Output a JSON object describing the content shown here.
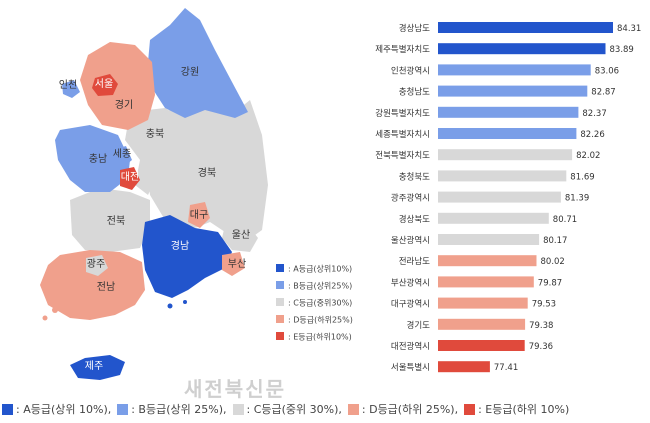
{
  "colors": {
    "A": "#2255cc",
    "B": "#7a9ee8",
    "C": "#d8d8d8",
    "D": "#f0a08c",
    "E": "#e04a3c"
  },
  "map_labels": [
    {
      "name": "인천",
      "grade": "B"
    },
    {
      "name": "서울",
      "grade": "E"
    },
    {
      "name": "경기",
      "grade": "D"
    },
    {
      "name": "강원",
      "grade": "B"
    },
    {
      "name": "충북",
      "grade": "C"
    },
    {
      "name": "충남",
      "grade": "B"
    },
    {
      "name": "세종",
      "grade": "B"
    },
    {
      "name": "대전",
      "grade": "E"
    },
    {
      "name": "경북",
      "grade": "C"
    },
    {
      "name": "대구",
      "grade": "D"
    },
    {
      "name": "전북",
      "grade": "C"
    },
    {
      "name": "경남",
      "grade": "A"
    },
    {
      "name": "울산",
      "grade": "C"
    },
    {
      "name": "광주",
      "grade": "C"
    },
    {
      "name": "부산",
      "grade": "D"
    },
    {
      "name": "전남",
      "grade": "D"
    },
    {
      "name": "제주",
      "grade": "A"
    }
  ],
  "mini_legend": [
    {
      "grade": "A",
      "label": ": A등급(상위10%)"
    },
    {
      "grade": "B",
      "label": ": B등급(상위25%)"
    },
    {
      "grade": "C",
      "label": ": C등급(중위30%)"
    },
    {
      "grade": "D",
      "label": ": D등급(하위25%)"
    },
    {
      "grade": "E",
      "label": ": E등급(하위10%)"
    }
  ],
  "bottom_legend": [
    {
      "grade": "A",
      "label": ": A등급(상위 10%),"
    },
    {
      "grade": "B",
      "label": ": B등급(상위 25%),"
    },
    {
      "grade": "C",
      "label": ": C등급(중위 30%),"
    },
    {
      "grade": "D",
      "label": ": D등급(하위 25%),"
    },
    {
      "grade": "E",
      "label": ": E등급(하위 10%)"
    }
  ],
  "watermark": "새전북신문",
  "chart_data": {
    "type": "bar",
    "orientation": "horizontal",
    "categories": [
      "경상남도",
      "제주특별자치도",
      "인천광역시",
      "충청남도",
      "강원특별자치도",
      "세종특별자치시",
      "전북특별자치도",
      "충청북도",
      "광주광역시",
      "경상북도",
      "울산광역시",
      "전라남도",
      "부산광역시",
      "대구광역시",
      "경기도",
      "대전광역시",
      "서울특별시"
    ],
    "values": [
      84.31,
      83.89,
      83.06,
      82.87,
      82.37,
      82.26,
      82.02,
      81.69,
      81.39,
      80.71,
      80.17,
      80.02,
      79.87,
      79.53,
      79.38,
      79.36,
      77.41
    ],
    "value_labels": [
      "84.31",
      "83.89",
      "83.06",
      "82.87",
      "82.37",
      "82.26",
      "82.02",
      "81.69",
      "81.39",
      "80.71",
      "80.17",
      "80.02",
      "79.87",
      "79.53",
      "79.38",
      "79.36",
      "77.41"
    ],
    "grades": [
      "A",
      "A",
      "B",
      "B",
      "B",
      "B",
      "C",
      "C",
      "C",
      "C",
      "C",
      "D",
      "D",
      "D",
      "D",
      "E",
      "E"
    ],
    "xlim": [
      74.5,
      84.31
    ],
    "grid": false,
    "legend_placement": "bottom"
  }
}
